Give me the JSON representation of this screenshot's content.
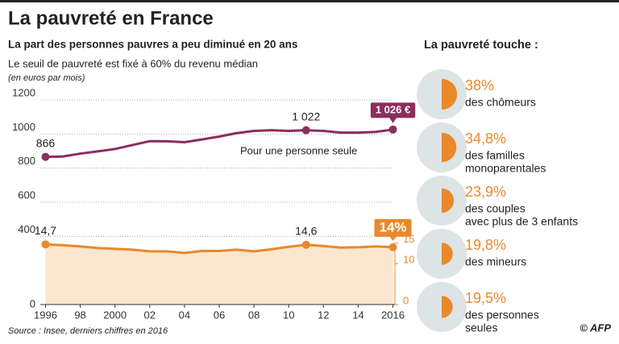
{
  "title": "La pauvreté en France",
  "source": "Source : Insee, derniers chiffres en 2016",
  "credit": "© AFP",
  "chart_data": [
    {
      "type": "line",
      "title": "La part des personnes pauvres a peu diminué en 20 ans",
      "subtitle": "Le seuil de pauvreté est fixé à 60% du revenu médian",
      "y_label": "(en euros par mois)",
      "annotation": "Pour une personne seule",
      "x": [
        1996,
        1997,
        1998,
        1999,
        2000,
        2001,
        2002,
        2003,
        2004,
        2005,
        2006,
        2007,
        2008,
        2009,
        2010,
        2011,
        2012,
        2013,
        2014,
        2015,
        2016
      ],
      "xlim": [
        1995.7,
        2016.3
      ],
      "xticks": [
        1996,
        {
          "value": 1998,
          "label": "98"
        },
        2000,
        {
          "value": 2002,
          "label": "02"
        },
        {
          "value": 2004,
          "label": "04"
        },
        {
          "value": 2006,
          "label": "06"
        },
        {
          "value": 2008,
          "label": "08"
        },
        {
          "value": 2010,
          "label": "10"
        },
        {
          "value": 2012,
          "label": "12"
        },
        {
          "value": 2014,
          "label": "14"
        },
        2016
      ],
      "ylim": [
        0,
        1200
      ],
      "yticks": [
        0,
        400,
        600,
        800,
        1000,
        1200
      ],
      "y2lim": [
        0,
        50
      ],
      "y2ticks": [
        0,
        10,
        15
      ],
      "grid": true,
      "series": [
        {
          "color": "#8b2d5e",
          "values": [
            866,
            868,
            885,
            898,
            912,
            935,
            958,
            957,
            952,
            968,
            985,
            1005,
            1018,
            1022,
            1018,
            1022,
            1018,
            1008,
            1008,
            1012,
            1026
          ],
          "value_labels": [
            "866",
            null,
            null,
            null,
            null,
            null,
            null,
            null,
            null,
            null,
            null,
            null,
            null,
            null,
            null,
            "1 022",
            null,
            null,
            null,
            null,
            "1 026 €"
          ]
        },
        {
          "color": "#e8892b",
          "axis": "y2",
          "area_color": "#fde6cf",
          "values": [
            14.7,
            14.5,
            14.2,
            13.8,
            13.6,
            13.4,
            13.0,
            13.0,
            12.6,
            13.1,
            13.1,
            13.4,
            13.0,
            13.5,
            14.1,
            14.6,
            14.3,
            13.9,
            14.0,
            14.2,
            14.0
          ],
          "value_labels": [
            "14,7",
            null,
            null,
            null,
            null,
            null,
            null,
            null,
            null,
            null,
            null,
            null,
            null,
            null,
            null,
            "14,6",
            null,
            null,
            null,
            null,
            "14%"
          ]
        }
      ]
    },
    {
      "type": "proportion",
      "title": "La pauvreté touche :",
      "color": "#e8892b",
      "base_color": "#dde4e5",
      "values": [
        38,
        34.8,
        23.9,
        19.8,
        19.5
      ],
      "value_labels": [
        "38%",
        "34,8%",
        "23,9%",
        "19,8%",
        "19,5%"
      ],
      "categories": [
        [
          "des chômeurs"
        ],
        [
          "des familles",
          "monoparentales"
        ],
        [
          "des couples",
          "avec plus de 3 enfants"
        ],
        [
          "des mineurs"
        ],
        [
          "des personnes",
          "seules"
        ]
      ]
    }
  ]
}
